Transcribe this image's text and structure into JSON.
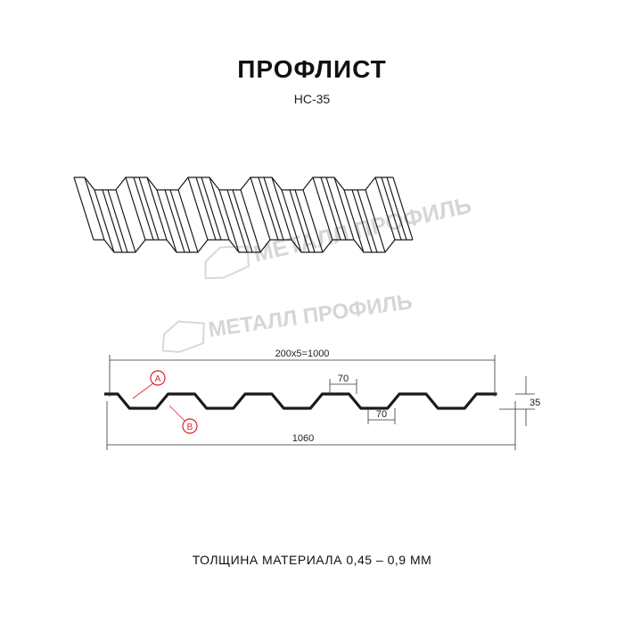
{
  "header": {
    "title": "ПРОФЛИСТ",
    "subtitle": "НС-35"
  },
  "watermark": "МЕТАЛЛ ПРОФИЛЬ",
  "dimensions": {
    "pitch": "200x5=1000",
    "total_width": "1060",
    "height": "35",
    "top_flat": "70",
    "bottom_flat": "70"
  },
  "markers": {
    "a": "A",
    "b": "B"
  },
  "footer": {
    "thickness": "ТОЛЩИНА МАТЕРИАЛА 0,45 – 0,9 ММ"
  },
  "colors": {
    "line": "#1a1a1a",
    "marker": "#e02020",
    "watermark": "#d6d6d6"
  }
}
